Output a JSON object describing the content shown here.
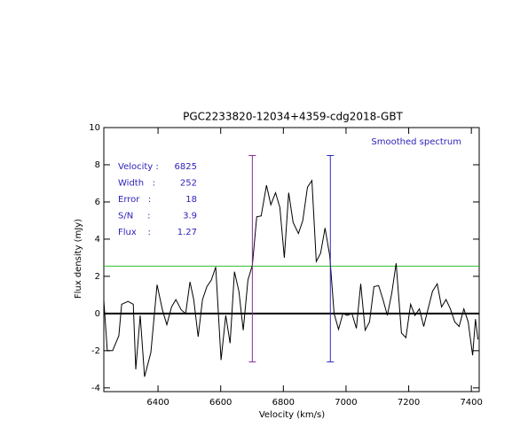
{
  "chart_data": {
    "type": "line",
    "title": "PGC2233820-12034+4359-cdg2018-GBT",
    "xlabel": "Velocity (km/s)",
    "ylabel": "Flux density (mJy)",
    "note": "Smoothed spectrum",
    "annotations": [
      {
        "label": "Velocity :",
        "value": "6825"
      },
      {
        "label": "Width   :",
        "value": "252"
      },
      {
        "label": "Error   :",
        "value": "18"
      },
      {
        "label": "S/N     :",
        "value": "3.9"
      },
      {
        "label": "Flux    :",
        "value": "1.27"
      }
    ],
    "xlim": [
      6227,
      7425
    ],
    "ylim": [
      -4.2,
      10
    ],
    "xticks": [
      6400,
      6600,
      6800,
      7000,
      7200,
      7400
    ],
    "yticks": [
      -4,
      -2,
      0,
      2,
      4,
      6,
      8,
      10
    ],
    "x": [
      6227,
      6238,
      6255,
      6275,
      6284,
      6304,
      6321,
      6329,
      6343,
      6357,
      6377,
      6397,
      6414,
      6428,
      6443,
      6457,
      6474,
      6488,
      6502,
      6514,
      6528,
      6542,
      6556,
      6570,
      6584,
      6601,
      6616,
      6630,
      6644,
      6658,
      6672,
      6687,
      6701,
      6715,
      6729,
      6746,
      6760,
      6775,
      6789,
      6803,
      6817,
      6831,
      6848,
      6862,
      6877,
      6891,
      6905,
      6919,
      6933,
      6948,
      6962,
      6976,
      6990,
      7004,
      7019,
      7033,
      7047,
      7061,
      7075,
      7089,
      7104,
      7118,
      7132,
      7146,
      7160,
      7177,
      7191,
      7206,
      7220,
      7234,
      7248,
      7262,
      7276,
      7291,
      7305,
      7319,
      7333,
      7347,
      7361,
      7376,
      7390,
      7404,
      7413,
      7421
    ],
    "series": [
      {
        "color": "#000000",
        "values": [
          0.7,
          -2.0,
          -2.0,
          -1.2,
          0.5,
          0.65,
          0.5,
          -3.0,
          -0.1,
          -3.4,
          -2.1,
          1.55,
          0.2,
          -0.6,
          0.35,
          0.75,
          0.2,
          0.0,
          1.7,
          0.75,
          -1.25,
          0.75,
          1.45,
          1.8,
          2.5,
          -2.5,
          -0.1,
          -1.6,
          2.25,
          1.2,
          -0.9,
          1.8,
          2.6,
          5.2,
          5.25,
          6.9,
          5.85,
          6.5,
          5.7,
          3.0,
          6.5,
          4.9,
          4.3,
          5.0,
          6.8,
          7.15,
          2.8,
          3.25,
          4.6,
          3.1,
          0.0,
          -0.85,
          0.0,
          -0.1,
          0.0,
          -0.8,
          1.6,
          -0.9,
          -0.45,
          1.45,
          1.5,
          0.75,
          -0.1,
          1.1,
          2.7,
          -1.05,
          -1.3,
          0.5,
          -0.1,
          0.25,
          -0.7,
          0.25,
          1.2,
          1.6,
          0.35,
          0.75,
          0.25,
          -0.45,
          -0.7,
          0.25,
          -0.45,
          -2.25,
          -0.3,
          -1.4
        ]
      }
    ],
    "markers": [
      {
        "x": 6701,
        "ylow": -2.6,
        "yhigh": 8.5,
        "color": "#8a2a9e"
      },
      {
        "x": 6950,
        "ylow": -2.6,
        "yhigh": 8.5,
        "color": "#2a2ac0"
      }
    ],
    "level": {
      "value": 2.55,
      "color": "#2ec02e"
    }
  }
}
